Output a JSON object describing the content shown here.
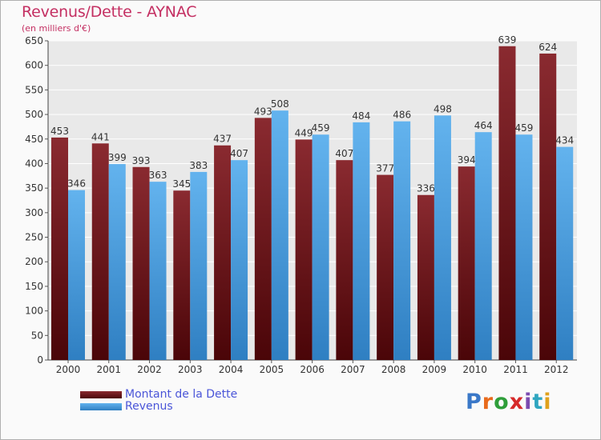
{
  "title": "Revenus/Dette - AYNAC",
  "subtitle": "(en milliers d'€)",
  "brand": {
    "text": "Proxiti",
    "letter_colors": [
      "#3a78c8",
      "#e86a1c",
      "#2f9e3a",
      "#d62a2a",
      "#7b4bb0",
      "#2fa6c0",
      "#e0a11c"
    ]
  },
  "chart_data": {
    "type": "bar",
    "categories": [
      "2000",
      "2001",
      "2002",
      "2003",
      "2004",
      "2005",
      "2006",
      "2007",
      "2008",
      "2009",
      "2010",
      "2011",
      "2012"
    ],
    "series": [
      {
        "name": "Montant de la Dette",
        "values": [
          453,
          441,
          393,
          345,
          437,
          493,
          449,
          407,
          377,
          336,
          394,
          639,
          624
        ],
        "color": "#7a1b24"
      },
      {
        "name": "Revenus",
        "values": [
          346,
          399,
          363,
          383,
          407,
          508,
          459,
          484,
          486,
          498,
          464,
          459,
          434
        ],
        "color": "#5aa8e6"
      }
    ],
    "ylim": [
      0,
      650
    ],
    "yticks": [
      0,
      50,
      100,
      150,
      200,
      250,
      300,
      350,
      400,
      450,
      500,
      550,
      600,
      650
    ],
    "grid": true,
    "legend_position": "bottom-left"
  }
}
